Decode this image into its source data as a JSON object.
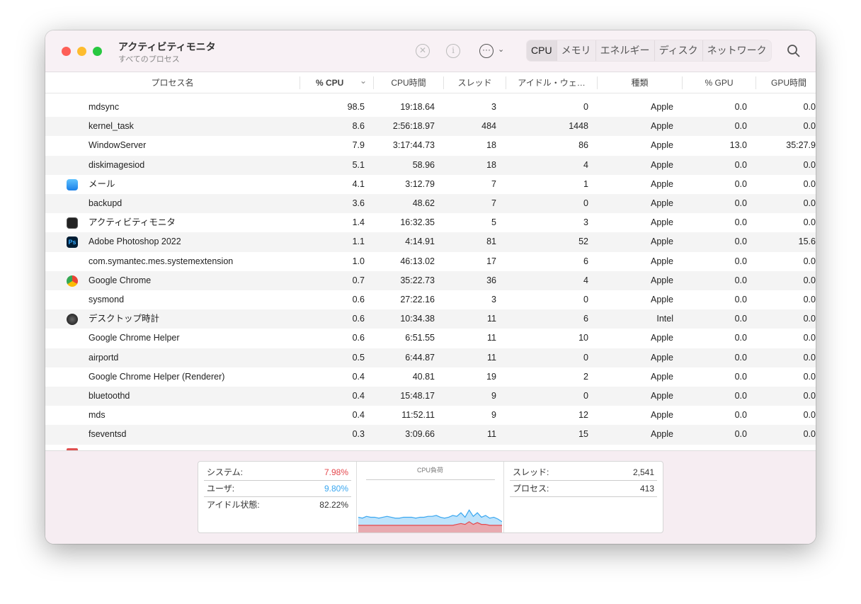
{
  "window": {
    "title": "アクティビティモニタ",
    "subtitle": "すべてのプロセス"
  },
  "toolbar": {
    "stop_icon": "x-circle-icon",
    "info_icon": "info-icon",
    "more_icon": "ellipsis-circle-icon",
    "search_icon": "search-icon",
    "tabs": [
      "CPU",
      "メモリ",
      "エネルギー",
      "ディスク",
      "ネットワーク"
    ],
    "active_tab": "CPU"
  },
  "columns": [
    "プロセス名",
    "% CPU",
    "CPU時間",
    "スレッド",
    "アイドル・ウェ…",
    "種類",
    "% GPU",
    "GPU時間"
  ],
  "sort_indicator": "⌄",
  "rows": [
    {
      "name": "mdsync",
      "cpu": "98.5",
      "time": "19:18.64",
      "threads": "3",
      "idle": "0",
      "kind": "Apple",
      "gpu": "0.0",
      "gputime": "0.0",
      "icon": ""
    },
    {
      "name": "kernel_task",
      "cpu": "8.6",
      "time": "2:56:18.97",
      "threads": "484",
      "idle": "1448",
      "kind": "Apple",
      "gpu": "0.0",
      "gputime": "0.0",
      "icon": ""
    },
    {
      "name": "WindowServer",
      "cpu": "7.9",
      "time": "3:17:44.73",
      "threads": "18",
      "idle": "86",
      "kind": "Apple",
      "gpu": "13.0",
      "gputime": "35:27.9",
      "icon": ""
    },
    {
      "name": "diskimagesiod",
      "cpu": "5.1",
      "time": "58.96",
      "threads": "18",
      "idle": "4",
      "kind": "Apple",
      "gpu": "0.0",
      "gputime": "0.0",
      "icon": ""
    },
    {
      "name": "メール",
      "cpu": "4.1",
      "time": "3:12.79",
      "threads": "7",
      "idle": "1",
      "kind": "Apple",
      "gpu": "0.0",
      "gputime": "0.0",
      "icon": "mail"
    },
    {
      "name": "backupd",
      "cpu": "3.6",
      "time": "48.62",
      "threads": "7",
      "idle": "0",
      "kind": "Apple",
      "gpu": "0.0",
      "gputime": "0.0",
      "icon": ""
    },
    {
      "name": "アクティビティモニタ",
      "cpu": "1.4",
      "time": "16:32.35",
      "threads": "5",
      "idle": "3",
      "kind": "Apple",
      "gpu": "0.0",
      "gputime": "0.0",
      "icon": "activity"
    },
    {
      "name": "Adobe Photoshop 2022",
      "cpu": "1.1",
      "time": "4:14.91",
      "threads": "81",
      "idle": "52",
      "kind": "Apple",
      "gpu": "0.0",
      "gputime": "15.6",
      "icon": "ps"
    },
    {
      "name": "com.symantec.mes.systemextension",
      "cpu": "1.0",
      "time": "46:13.02",
      "threads": "17",
      "idle": "6",
      "kind": "Apple",
      "gpu": "0.0",
      "gputime": "0.0",
      "icon": ""
    },
    {
      "name": "Google Chrome",
      "cpu": "0.7",
      "time": "35:22.73",
      "threads": "36",
      "idle": "4",
      "kind": "Apple",
      "gpu": "0.0",
      "gputime": "0.0",
      "icon": "chrome"
    },
    {
      "name": "sysmond",
      "cpu": "0.6",
      "time": "27:22.16",
      "threads": "3",
      "idle": "0",
      "kind": "Apple",
      "gpu": "0.0",
      "gputime": "0.0",
      "icon": ""
    },
    {
      "name": "デスクトップ時計",
      "cpu": "0.6",
      "time": "10:34.38",
      "threads": "11",
      "idle": "6",
      "kind": "Intel",
      "gpu": "0.0",
      "gputime": "0.0",
      "icon": "clock"
    },
    {
      "name": "Google Chrome Helper",
      "cpu": "0.6",
      "time": "6:51.55",
      "threads": "11",
      "idle": "10",
      "kind": "Apple",
      "gpu": "0.0",
      "gputime": "0.0",
      "icon": ""
    },
    {
      "name": "airportd",
      "cpu": "0.5",
      "time": "6:44.87",
      "threads": "11",
      "idle": "0",
      "kind": "Apple",
      "gpu": "0.0",
      "gputime": "0.0",
      "icon": ""
    },
    {
      "name": "Google Chrome Helper (Renderer)",
      "cpu": "0.4",
      "time": "40.81",
      "threads": "19",
      "idle": "2",
      "kind": "Apple",
      "gpu": "0.0",
      "gputime": "0.0",
      "icon": ""
    },
    {
      "name": "bluetoothd",
      "cpu": "0.4",
      "time": "15:48.17",
      "threads": "9",
      "idle": "0",
      "kind": "Apple",
      "gpu": "0.0",
      "gputime": "0.0",
      "icon": ""
    },
    {
      "name": "mds",
      "cpu": "0.4",
      "time": "11:52.11",
      "threads": "9",
      "idle": "12",
      "kind": "Apple",
      "gpu": "0.0",
      "gputime": "0.0",
      "icon": ""
    },
    {
      "name": "fseventsd",
      "cpu": "0.3",
      "time": "3:09.66",
      "threads": "11",
      "idle": "15",
      "kind": "Apple",
      "gpu": "0.0",
      "gputime": "0.0",
      "icon": ""
    }
  ],
  "summary": {
    "system_label": "システム:",
    "system_value": "7.98%",
    "system_color": "#e5484d",
    "user_label": "ユーザ:",
    "user_value": "9.80%",
    "user_color": "#3aa7f0",
    "idle_label": "アイドル状態:",
    "idle_value": "82.22%",
    "graph_title": "CPU負荷",
    "threads_label": "スレッド:",
    "threads_value": "2,541",
    "processes_label": "プロセス:",
    "processes_value": "413",
    "graph_user_pct": [
      17,
      16,
      18,
      17,
      17,
      16,
      17,
      18,
      17,
      16,
      16,
      17,
      17,
      17,
      16,
      17,
      17,
      18,
      18,
      19,
      17,
      16,
      17,
      19,
      18,
      22,
      17,
      25,
      18,
      22,
      17,
      19,
      16,
      17,
      15,
      12
    ],
    "graph_system_pct": [
      8,
      8,
      8,
      8,
      8,
      8,
      8,
      8,
      8,
      8,
      8,
      8,
      8,
      8,
      8,
      8,
      8,
      8,
      8,
      8,
      8,
      8,
      8,
      8,
      9,
      10,
      9,
      12,
      9,
      11,
      9,
      9,
      8,
      8,
      8,
      8
    ]
  }
}
